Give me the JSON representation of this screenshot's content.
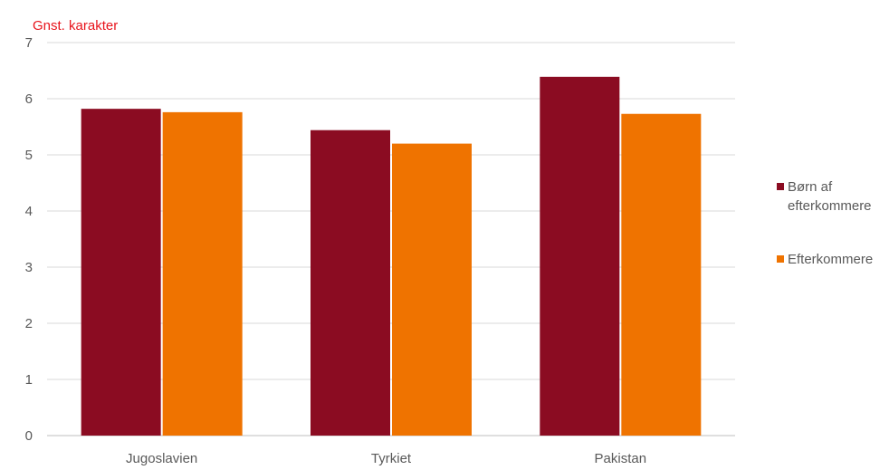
{
  "chart_data": {
    "type": "bar",
    "ylabel": "Gnst. karakter",
    "categories": [
      "Jugoslavien",
      "Tyrkiet",
      "Pakistan"
    ],
    "series": [
      {
        "name": "Børn af efterkommere",
        "color": "#8b0c22",
        "values": [
          5.82,
          5.44,
          6.39
        ]
      },
      {
        "name": "Efterkommere",
        "color": "#ef7300",
        "values": [
          5.76,
          5.2,
          5.73
        ]
      }
    ],
    "ylim": [
      0,
      7
    ],
    "yticks": [
      0,
      1,
      2,
      3,
      4,
      5,
      6,
      7
    ],
    "grid": true,
    "legend": "right"
  }
}
